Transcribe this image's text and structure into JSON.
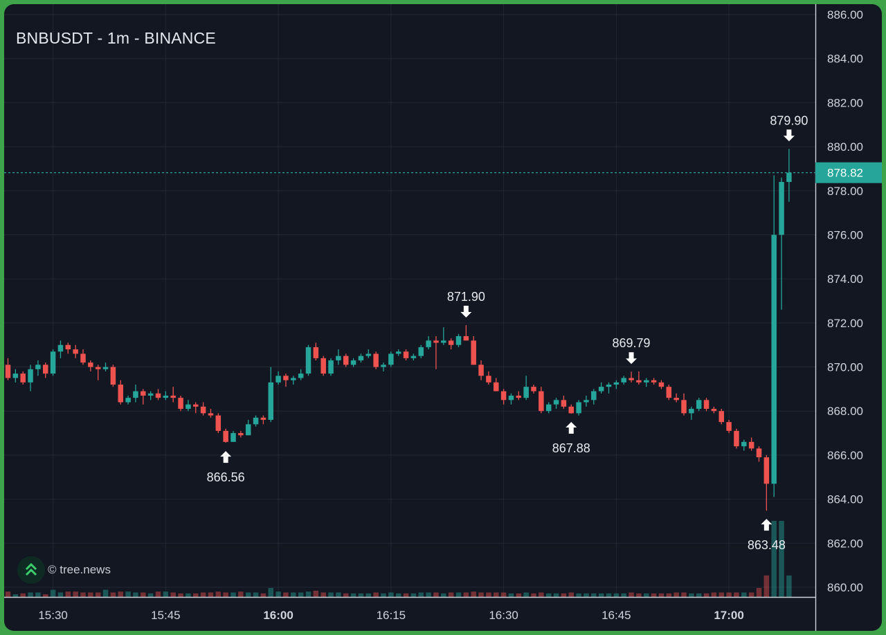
{
  "title": "BNBUSDT - 1m - BINANCE",
  "watermark": "© tree.news",
  "last_price_label": "878.82",
  "colors": {
    "background": "#131722",
    "up": "#26a69a",
    "down": "#ef5350",
    "grid": "#232734",
    "frame": "#3fa34a"
  },
  "chart_data": {
    "type": "candlestick",
    "title": "BNBUSDT - 1m - BINANCE",
    "y_ticks": [
      "886.00",
      "884.00",
      "882.00",
      "880.00",
      "878.00",
      "876.00",
      "874.00",
      "872.00",
      "870.00",
      "868.00",
      "866.00",
      "864.00",
      "862.00",
      "860.00"
    ],
    "ylim": [
      860,
      886
    ],
    "x_ticks": [
      {
        "label": "15:30",
        "bold": false
      },
      {
        "label": "15:45",
        "bold": false
      },
      {
        "label": "16:00",
        "bold": true
      },
      {
        "label": "16:15",
        "bold": false
      },
      {
        "label": "16:30",
        "bold": false
      },
      {
        "label": "16:45",
        "bold": false
      },
      {
        "label": "17:00",
        "bold": true
      }
    ],
    "start_time": "15:24",
    "interval": "1m",
    "grid": true,
    "last_price": 878.82,
    "candles": [
      [
        870.1,
        870.4,
        869.4,
        869.5
      ],
      [
        869.5,
        869.9,
        869.3,
        869.7
      ],
      [
        869.7,
        869.8,
        869.2,
        869.3
      ],
      [
        869.3,
        870.1,
        868.9,
        869.9
      ],
      [
        869.9,
        870.3,
        869.6,
        870.1
      ],
      [
        870.1,
        870.2,
        869.5,
        869.7
      ],
      [
        869.7,
        870.8,
        869.6,
        870.7
      ],
      [
        870.7,
        871.2,
        870.4,
        871.0
      ],
      [
        871.0,
        871.1,
        870.6,
        870.8
      ],
      [
        870.8,
        871.0,
        870.4,
        870.6
      ],
      [
        870.6,
        870.8,
        870.1,
        870.2
      ],
      [
        870.2,
        870.3,
        869.8,
        870.0
      ],
      [
        870.0,
        870.1,
        869.4,
        869.9
      ],
      [
        869.9,
        870.2,
        869.8,
        870.0
      ],
      [
        870.0,
        870.1,
        869.1,
        869.2
      ],
      [
        869.2,
        869.4,
        868.3,
        868.4
      ],
      [
        868.4,
        868.7,
        868.3,
        868.6
      ],
      [
        868.6,
        869.2,
        868.4,
        868.9
      ],
      [
        868.9,
        869.0,
        868.3,
        868.7
      ],
      [
        868.7,
        868.9,
        868.5,
        868.8
      ],
      [
        868.8,
        869.0,
        868.5,
        868.6
      ],
      [
        868.6,
        868.9,
        868.5,
        868.7
      ],
      [
        868.7,
        869.1,
        868.4,
        868.6
      ],
      [
        868.6,
        868.7,
        868.0,
        868.1
      ],
      [
        868.1,
        868.5,
        868.0,
        868.3
      ],
      [
        868.3,
        868.4,
        867.9,
        868.2
      ],
      [
        868.2,
        868.4,
        867.8,
        867.9
      ],
      [
        867.9,
        868.1,
        867.7,
        867.8
      ],
      [
        867.8,
        867.9,
        867.0,
        867.1
      ],
      [
        867.1,
        867.2,
        866.56,
        866.6
      ],
      [
        866.6,
        867.1,
        866.6,
        867.0
      ],
      [
        867.0,
        867.1,
        866.8,
        866.9
      ],
      [
        866.9,
        867.6,
        866.9,
        867.4
      ],
      [
        867.4,
        867.8,
        867.3,
        867.7
      ],
      [
        867.7,
        867.8,
        867.4,
        867.6
      ],
      [
        867.6,
        870.0,
        867.5,
        869.3
      ],
      [
        869.3,
        869.8,
        869.2,
        869.6
      ],
      [
        869.6,
        869.7,
        869.1,
        869.4
      ],
      [
        869.4,
        869.6,
        869.2,
        869.5
      ],
      [
        869.5,
        869.9,
        869.4,
        869.7
      ],
      [
        869.7,
        871.0,
        869.6,
        870.9
      ],
      [
        870.9,
        871.1,
        870.3,
        870.4
      ],
      [
        870.4,
        870.5,
        869.6,
        869.7
      ],
      [
        869.7,
        870.4,
        869.6,
        870.3
      ],
      [
        870.3,
        870.8,
        870.1,
        870.5
      ],
      [
        870.5,
        870.6,
        870.0,
        870.1
      ],
      [
        870.1,
        870.4,
        870.0,
        870.3
      ],
      [
        870.3,
        870.6,
        870.2,
        870.5
      ],
      [
        870.5,
        870.8,
        870.4,
        870.6
      ],
      [
        870.6,
        870.7,
        869.9,
        870.0
      ],
      [
        870.0,
        870.2,
        869.8,
        870.1
      ],
      [
        870.1,
        870.7,
        870.0,
        870.6
      ],
      [
        870.6,
        870.8,
        870.5,
        870.7
      ],
      [
        870.7,
        870.8,
        870.3,
        870.4
      ],
      [
        870.4,
        870.6,
        870.3,
        870.5
      ],
      [
        870.5,
        871.0,
        870.4,
        870.9
      ],
      [
        870.9,
        871.4,
        870.8,
        871.2
      ],
      [
        871.2,
        871.4,
        869.9,
        871.1
      ],
      [
        871.1,
        871.8,
        871.0,
        871.2
      ],
      [
        871.2,
        871.3,
        870.8,
        871.0
      ],
      [
        871.0,
        871.5,
        870.9,
        871.4
      ],
      [
        871.4,
        871.9,
        871.3,
        871.2
      ],
      [
        871.2,
        871.4,
        870.1,
        870.1
      ],
      [
        870.1,
        870.3,
        869.4,
        869.6
      ],
      [
        869.6,
        869.8,
        869.2,
        869.3
      ],
      [
        869.3,
        869.5,
        868.9,
        868.9
      ],
      [
        868.9,
        869.0,
        868.3,
        868.5
      ],
      [
        868.5,
        868.8,
        868.3,
        868.7
      ],
      [
        868.7,
        868.9,
        868.5,
        868.6
      ],
      [
        868.6,
        869.6,
        868.5,
        869.1
      ],
      [
        869.1,
        869.2,
        868.8,
        868.9
      ],
      [
        868.9,
        869.1,
        867.9,
        868.0
      ],
      [
        868.0,
        868.4,
        867.9,
        868.3
      ],
      [
        868.3,
        868.6,
        868.1,
        868.5
      ],
      [
        868.5,
        868.7,
        868.1,
        868.2
      ],
      [
        868.2,
        868.3,
        867.88,
        867.9
      ],
      [
        867.9,
        868.5,
        867.8,
        868.4
      ],
      [
        868.4,
        868.7,
        868.2,
        868.5
      ],
      [
        868.5,
        869.0,
        868.3,
        868.9
      ],
      [
        868.9,
        869.3,
        868.8,
        869.1
      ],
      [
        869.1,
        869.3,
        868.8,
        869.2
      ],
      [
        869.2,
        869.4,
        869.0,
        869.3
      ],
      [
        869.3,
        869.6,
        869.2,
        869.5
      ],
      [
        869.5,
        869.79,
        869.3,
        869.4
      ],
      [
        869.4,
        869.8,
        869.2,
        869.3
      ],
      [
        869.3,
        869.5,
        869.1,
        869.4
      ],
      [
        869.4,
        869.5,
        869.2,
        869.3
      ],
      [
        869.3,
        869.4,
        869.0,
        869.1
      ],
      [
        869.1,
        869.2,
        868.5,
        868.6
      ],
      [
        868.6,
        868.8,
        868.4,
        868.5
      ],
      [
        868.5,
        868.8,
        867.8,
        867.9
      ],
      [
        867.9,
        868.2,
        867.6,
        868.1
      ],
      [
        868.1,
        868.6,
        868.0,
        868.5
      ],
      [
        868.5,
        868.6,
        868.0,
        868.1
      ],
      [
        868.1,
        868.2,
        867.9,
        868.0
      ],
      [
        868.0,
        868.1,
        867.4,
        867.5
      ],
      [
        867.5,
        867.6,
        867.0,
        867.1
      ],
      [
        867.1,
        867.2,
        866.3,
        866.4
      ],
      [
        866.4,
        866.7,
        866.2,
        866.6
      ],
      [
        866.6,
        866.8,
        866.2,
        866.3
      ],
      [
        866.3,
        866.4,
        865.7,
        865.9
      ],
      [
        865.9,
        866.0,
        863.48,
        864.7
      ],
      [
        864.7,
        878.7,
        864.1,
        876.0
      ],
      [
        876.0,
        878.6,
        872.6,
        878.4
      ],
      [
        878.4,
        879.9,
        877.5,
        878.82
      ]
    ],
    "volumes": [
      0.6,
      0.3,
      0.4,
      0.5,
      0.5,
      0.3,
      0.8,
      0.5,
      0.6,
      0.6,
      0.5,
      0.5,
      0.5,
      0.8,
      0.5,
      0.6,
      0.6,
      0.5,
      0.5,
      0.4,
      0.6,
      0.6,
      0.5,
      0.4,
      0.4,
      0.4,
      0.5,
      0.5,
      0.6,
      0.5,
      0.5,
      0.6,
      0.5,
      0.5,
      0.4,
      1.0,
      0.6,
      0.5,
      0.5,
      0.5,
      0.6,
      0.7,
      0.5,
      0.5,
      0.5,
      0.4,
      0.4,
      0.4,
      0.4,
      0.5,
      0.4,
      0.5,
      0.4,
      0.4,
      0.4,
      0.5,
      0.5,
      0.5,
      0.4,
      0.5,
      0.5,
      0.5,
      0.6,
      0.5,
      0.5,
      0.5,
      0.5,
      0.4,
      0.4,
      0.5,
      0.4,
      0.5,
      0.4,
      0.4,
      0.4,
      0.5,
      0.4,
      0.4,
      0.4,
      0.4,
      0.4,
      0.4,
      0.4,
      0.5,
      0.4,
      0.4,
      0.4,
      0.4,
      0.4,
      0.5,
      0.5,
      0.4,
      0.4,
      0.4,
      0.5,
      0.5,
      0.5,
      0.5,
      0.5,
      0.5,
      1.0,
      2.4,
      8.5,
      8.5,
      2.4
    ],
    "annotations": [
      {
        "label": "866.56",
        "candle": 29,
        "price": 866.56,
        "position": "below"
      },
      {
        "label": "871.90",
        "candle": 61,
        "price": 871.9,
        "position": "above"
      },
      {
        "label": "867.88",
        "candle": 75,
        "price": 867.88,
        "position": "below"
      },
      {
        "label": "869.79",
        "candle": 83,
        "price": 869.79,
        "position": "above"
      },
      {
        "label": "863.48",
        "candle": 101,
        "price": 863.48,
        "position": "below"
      },
      {
        "label": "879.90",
        "candle": 104,
        "price": 879.9,
        "position": "above"
      }
    ]
  }
}
